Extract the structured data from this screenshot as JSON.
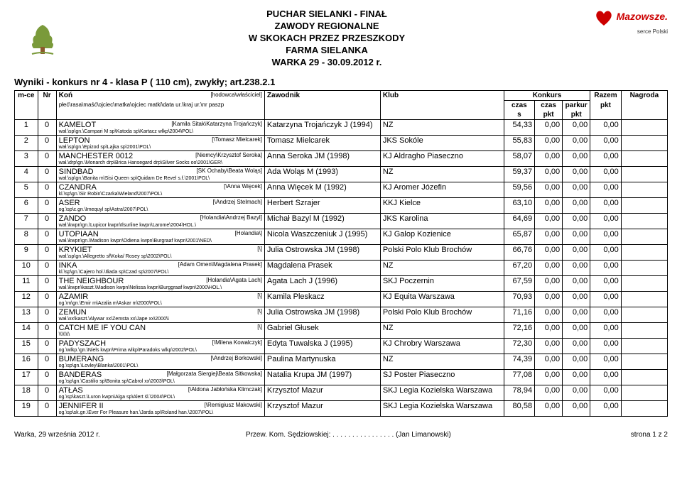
{
  "header": {
    "lines": [
      "PUCHAR SIELANKI - FINAŁ",
      "ZAWODY REGIONALNE",
      "W SKOKACH PRZEZ PRZESZKODY",
      "FARMA SIELANKA",
      "WARKA 29 - 30.09.2012 r."
    ],
    "logo_right_text": "Mazowsze.",
    "logo_right_sub": "serce Polski"
  },
  "results_title": "Wyniki - konkurs nr 4 - klasa P ( 110 cm),  zwykły; art.238.2.1",
  "columns": {
    "konkurs": "Konkurs",
    "mce": "m-ce",
    "nr": "Nr",
    "kon": "Koń",
    "kon_sub1": "[hodowca\\właściciel]",
    "kon_sub2": "płeć\\rasa\\maść\\ojciec\\matka\\ojciec matki\\data ur.\\kraj ur.\\nr paszp",
    "zawodnik": "Zawodnik",
    "klub": "Klub",
    "czas": "czas",
    "czas_sub": "s",
    "czaspkt": "czas",
    "czaspkt_sub": "pkt",
    "parkur": "parkur",
    "parkur_sub": "pkt",
    "razem": "Razem",
    "razem_sub": "pkt",
    "nagroda": "Nagroda"
  },
  "rows": [
    {
      "mce": "1",
      "nr": "0",
      "kon": "KAMELOT",
      "owner": "[Kamila Sitak\\Katarzyna Trojańczyk]",
      "detail": "wał.\\sp\\gn.\\Campari M sp\\Katoda sp\\Kartacz wlkp\\2004\\POL\\",
      "zaw": "Katarzyna Trojańczyk J (1994)",
      "klub": "NZ",
      "czas": "54,33",
      "cpkt": "0,00",
      "ppkt": "0,00",
      "razem": "0,00",
      "nag": ""
    },
    {
      "mce": "2",
      "nr": "0",
      "kon": "LEPTON",
      "owner": "[\\Tomasz Mielcarek]",
      "detail": "wał.\\sp\\gn.\\Epizod sp\\Lajka sp\\2001\\POL\\",
      "zaw": "Tomasz Mielcarek",
      "klub": "JKS Sokóle",
      "czas": "55,83",
      "cpkt": "0,00",
      "ppkt": "0,00",
      "razem": "0,00",
      "nag": ""
    },
    {
      "mce": "3",
      "nr": "0",
      "kon": "MANCHESTER 0012",
      "owner": "[Niemcy\\Krzysztof Seroka]",
      "detail": "wał.\\drp\\gn.\\Monarch drp\\Brica Hansegard drp\\Silver Socks oo\\2001\\GER\\",
      "zaw": "Anna Seroka JM (1998)",
      "klub": "KJ Aldragho Piaseczno",
      "czas": "58,07",
      "cpkt": "0,00",
      "ppkt": "0,00",
      "razem": "0,00",
      "nag": ""
    },
    {
      "mce": "4",
      "nr": "0",
      "kon": "SINDBAD",
      "owner": "[SK Ochaby\\Beata Woląs]",
      "detail": "wał.\\sp\\gn.\\Banita m\\Sisi Queen sp\\Quidam De Revel s.f.\\2001\\POL\\",
      "zaw": "Ada Woląs M (1993)",
      "klub": "NZ",
      "czas": "59,37",
      "cpkt": "0,00",
      "ppkt": "0,00",
      "razem": "0,00",
      "nag": ""
    },
    {
      "mce": "5",
      "nr": "0",
      "kon": "CZANDRA",
      "owner": "[\\Anna Więcek]",
      "detail": "kl.\\sp\\gn.\\Sir Robin\\Czarka\\Wieland\\2007\\POL\\",
      "zaw": "Anna Więcek M (1992)",
      "klub": "KJ Aromer Józefin",
      "czas": "59,56",
      "cpkt": "0,00",
      "ppkt": "0,00",
      "razem": "0,00",
      "nag": ""
    },
    {
      "mce": "6",
      "nr": "0",
      "kon": "ASER",
      "owner": "[\\Andrzej Stelmach]",
      "detail": "og.\\sp\\c.gn.\\Imequyl sp\\Astra\\2007\\POL\\",
      "zaw": "Herbert Szrajer",
      "klub": "KKJ Kielce",
      "czas": "63,10",
      "cpkt": "0,00",
      "ppkt": "0,00",
      "razem": "0,00",
      "nag": ""
    },
    {
      "mce": "7",
      "nr": "0",
      "kon": "ZANDO",
      "owner": "[Holandia\\Andrzej Bazyl]",
      "detail": "wał.\\kwpn\\gn.\\Lupicor kwpn\\Ilsurline kwpn\\Larome\\2004\\HOL.\\",
      "zaw": "Michał Bazyl M (1992)",
      "klub": "JKS Karolina",
      "czas": "64,69",
      "cpkt": "0,00",
      "ppkt": "0,00",
      "razem": "0,00",
      "nag": ""
    },
    {
      "mce": "8",
      "nr": "0",
      "kon": "UTOPIAAN",
      "owner": "[Holandia\\]",
      "detail": "wał.\\kwpn\\gn.\\Madison kwpn\\Odiena kwpn\\Burgraaf kwpn\\2001\\NED\\",
      "zaw": "Nicola Waszczeniuk J (1995)",
      "klub": "KJ Galop Kozienice",
      "czas": "65,87",
      "cpkt": "0,00",
      "ppkt": "0,00",
      "razem": "0,00",
      "nag": ""
    },
    {
      "mce": "9",
      "nr": "0",
      "kon": "KRYKIET",
      "owner": "[\\]",
      "detail": "wał.\\sp\\gn.\\Allegretto sf\\Koka/ Rosey sp\\2002\\POL\\",
      "zaw": "Julia Ostrowska JM (1998)",
      "klub": "Polski Polo Klub Brochów",
      "czas": "66,76",
      "cpkt": "0,00",
      "ppkt": "0,00",
      "razem": "0,00",
      "nag": ""
    },
    {
      "mce": "10",
      "nr": "0",
      "kon": "INKA",
      "owner": "[Adam Omen\\Magdalena Prasek]",
      "detail": "kl.\\sp\\gn.\\Cajero hol.\\Iliada sp\\Czad sp\\2007\\POL\\",
      "zaw": "Magdalena Prasek",
      "klub": "NZ",
      "czas": "67,20",
      "cpkt": "0,00",
      "ppkt": "0,00",
      "razem": "0,00",
      "nag": ""
    },
    {
      "mce": "11",
      "nr": "0",
      "kon": "THE NEIGHBOUR",
      "owner": "[Holandia\\Agata Lach]",
      "detail": "wał.\\kwpn\\kaszt.\\Madison kwpn\\Nelissa kwpn\\Burggraaf kwpn\\2000\\HOL.\\",
      "zaw": "Agata Lach J (1996)",
      "klub": "SKJ Poczernin",
      "czas": "67,59",
      "cpkt": "0,00",
      "ppkt": "0,00",
      "razem": "0,00",
      "nag": ""
    },
    {
      "mce": "12",
      "nr": "0",
      "kon": "AZAMIR",
      "owner": "[\\]",
      "detail": "og.\\m\\gn.\\Emir m\\Azalia m\\Askar m\\2000\\POL\\",
      "zaw": "Kamila Pleskacz",
      "klub": "KJ Equita Warszawa",
      "czas": "70,93",
      "cpkt": "0,00",
      "ppkt": "0,00",
      "razem": "0,00",
      "nag": ""
    },
    {
      "mce": "13",
      "nr": "0",
      "kon": "ZEMUN",
      "owner": "[\\]",
      "detail": "wał.\\xx\\kaszt.\\Alywar xx\\Zemsta xx\\Jape xx\\2000\\\\",
      "zaw": "Julia Ostrowska JM (1998)",
      "klub": "Polski Polo Klub Brochów",
      "czas": "71,16",
      "cpkt": "0,00",
      "ppkt": "0,00",
      "razem": "0,00",
      "nag": ""
    },
    {
      "mce": "14",
      "nr": "0",
      "kon": "CATCH ME IF YOU CAN",
      "owner": "[\\]",
      "detail": "\\\\\\\\\\\\\\\\",
      "zaw": "Gabriel Głusek",
      "klub": "NZ",
      "czas": "72,16",
      "cpkt": "0,00",
      "ppkt": "0,00",
      "razem": "0,00",
      "nag": ""
    },
    {
      "mce": "15",
      "nr": "0",
      "kon": "PADYSZACH",
      "owner": "[\\Milena Kowalczyk]",
      "detail": "og.\\wlkp.\\gn.\\Niels kwpn\\Prima wlkp\\Paradoks wlkp\\2002\\POL\\",
      "zaw": "Edyta Tuwalska J (1995)",
      "klub": "KJ Chrobry Warszawa",
      "czas": "72,30",
      "cpkt": "0,00",
      "ppkt": "0,00",
      "razem": "0,00",
      "nag": ""
    },
    {
      "mce": "16",
      "nr": "0",
      "kon": "BUMERANG",
      "owner": "[\\Andrzej Borkowski]",
      "detail": "og.\\sp\\gn.\\Lovley\\Blanka\\2001\\POL\\",
      "zaw": "Paulina Martynuska",
      "klub": "NZ",
      "czas": "74,39",
      "cpkt": "0,00",
      "ppkt": "0,00",
      "razem": "0,00",
      "nag": ""
    },
    {
      "mce": "17",
      "nr": "0",
      "kon": "BANDERAS",
      "owner": "[Małgorzata Siergiej\\Beata Sitkowska]",
      "detail": "og.\\sp\\gn.\\Castilio sp\\Bonita sp\\Cabrol xx\\2003\\POL\\",
      "zaw": "Natalia Krupa JM (1997)",
      "klub": "SJ Poster Piaseczno",
      "czas": "77,08",
      "cpkt": "0,00",
      "ppkt": "0,00",
      "razem": "0,00",
      "nag": ""
    },
    {
      "mce": "18",
      "nr": "0",
      "kon": "ATŁAS",
      "owner": "[\\Aldona Jabłońska Klimczak]",
      "detail": "og.\\sp\\kaszt.\\Luron kwpn\\Alga sp\\Alert śl.\\2004\\POL\\",
      "zaw": "Krzysztof Mazur",
      "klub": "SKJ Legia Kozielska Warszawa",
      "czas": "78,94",
      "cpkt": "0,00",
      "ppkt": "0,00",
      "razem": "0,00",
      "nag": ""
    },
    {
      "mce": "19",
      "nr": "0",
      "kon": "JENNIFER II",
      "owner": "[\\Remigiusz Makowski]",
      "detail": "og.\\sp\\sk.gn.\\Ever For Pleasure han.\\Jarda sp\\Roland han.\\2007\\POL\\",
      "zaw": "Krzysztof Mazur",
      "klub": "SKJ Legia Kozielska Warszawa",
      "czas": "80,58",
      "cpkt": "0,00",
      "ppkt": "0,00",
      "razem": "0,00",
      "nag": ""
    }
  ],
  "footer": {
    "left": "Warka,  29 września 2012 r.",
    "center": "Przew. Kom. Sędziowskiej: . . . . . . . . . . . . . . . . (Jan Limanowski)",
    "right": "strona 1 z 2"
  }
}
